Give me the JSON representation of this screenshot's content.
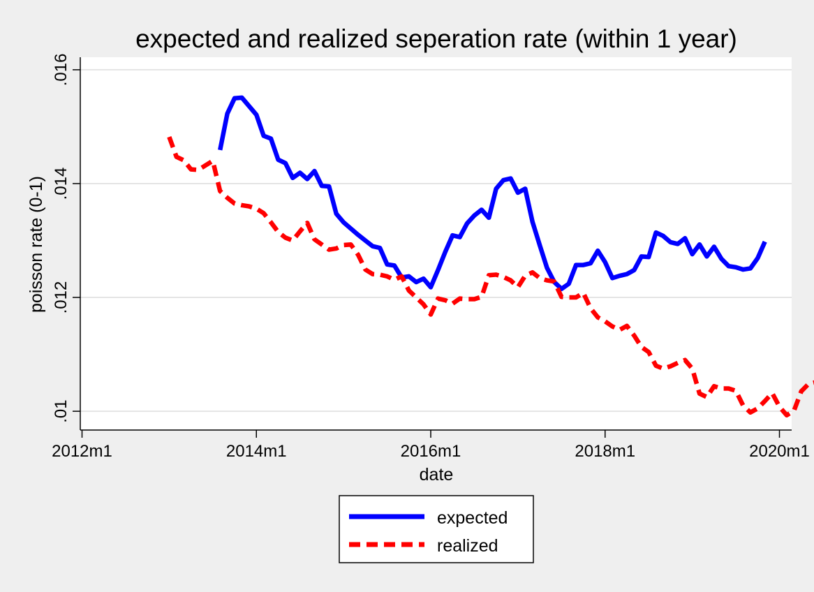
{
  "chart_data": {
    "type": "line",
    "title": "expected and realized seperation rate (within 1 year)",
    "xlabel": "date",
    "ylabel": "poisson rate (0-1)",
    "x_ticks": [
      {
        "label": "2012m1",
        "t": 2012.0
      },
      {
        "label": "2014m1",
        "t": 2014.0
      },
      {
        "label": "2016m1",
        "t": 2016.0
      },
      {
        "label": "2018m1",
        "t": 2018.0
      },
      {
        "label": "2020m1",
        "t": 2020.0
      }
    ],
    "y_ticks": [
      {
        "label": ".01",
        "v": 0.01
      },
      {
        "label": ".012",
        "v": 0.012
      },
      {
        "label": ".014",
        "v": 0.014
      },
      {
        "label": ".016",
        "v": 0.016
      }
    ],
    "xlim": [
      2011.98,
      2020.14
    ],
    "ylim": [
      0.00967,
      0.01622
    ],
    "grid": true,
    "legend_position": "bottom",
    "series": [
      {
        "name": "expected",
        "color": "#0000ff",
        "style": "solid",
        "start": "2013m8",
        "values": [
          0.01459,
          0.01523,
          0.0155,
          0.01551,
          0.01536,
          0.01521,
          0.01484,
          0.01479,
          0.01442,
          0.01436,
          0.0141,
          0.01419,
          0.01408,
          0.01422,
          0.01396,
          0.01395,
          0.01347,
          0.01332,
          0.01321,
          0.0131,
          0.013,
          0.0129,
          0.01287,
          0.01258,
          0.01256,
          0.01235,
          0.01237,
          0.01227,
          0.01233,
          0.01218,
          0.01248,
          0.0128,
          0.01309,
          0.01306,
          0.0133,
          0.01344,
          0.01354,
          0.0134,
          0.01391,
          0.01406,
          0.01409,
          0.01384,
          0.01391,
          0.01333,
          0.01292,
          0.01252,
          0.01227,
          0.01215,
          0.01224,
          0.01257,
          0.01257,
          0.0126,
          0.01282,
          0.01262,
          0.01234,
          0.01238,
          0.01241,
          0.01248,
          0.01272,
          0.01271,
          0.01314,
          0.01308,
          0.01297,
          0.01294,
          0.01304,
          0.01276,
          0.01293,
          0.01272,
          0.01289,
          0.01268,
          0.01255,
          0.01253,
          0.01249,
          0.01251,
          0.01269,
          0.01298
        ]
      },
      {
        "name": "realized",
        "color": "#ff0000",
        "style": "dashed",
        "start": "2013m1",
        "values": [
          0.01482,
          0.01447,
          0.01441,
          0.01425,
          0.01424,
          0.01432,
          0.0144,
          0.01387,
          0.01375,
          0.01365,
          0.01362,
          0.0136,
          0.01356,
          0.01348,
          0.01332,
          0.01315,
          0.01305,
          0.013,
          0.01316,
          0.01331,
          0.01302,
          0.01293,
          0.01284,
          0.01286,
          0.01292,
          0.01293,
          0.01275,
          0.01249,
          0.01241,
          0.0124,
          0.01237,
          0.01231,
          0.01237,
          0.01212,
          0.012,
          0.01188,
          0.0117,
          0.01198,
          0.01195,
          0.01189,
          0.01198,
          0.01197,
          0.01197,
          0.01201,
          0.01239,
          0.0124,
          0.01236,
          0.0123,
          0.01218,
          0.01238,
          0.01244,
          0.01234,
          0.0123,
          0.01228,
          0.01201,
          0.012,
          0.012,
          0.01208,
          0.01181,
          0.01165,
          0.01158,
          0.01149,
          0.01143,
          0.0115,
          0.01133,
          0.01113,
          0.01104,
          0.0108,
          0.01075,
          0.01079,
          0.01085,
          0.0109,
          0.01075,
          0.01031,
          0.01025,
          0.01044,
          0.0104,
          0.0104,
          0.01036,
          0.0101,
          0.00998,
          0.01005,
          0.01018,
          0.01032,
          0.01008,
          0.00993,
          0.01001,
          0.01035,
          0.01048,
          0.01051,
          0.01049
        ]
      }
    ]
  }
}
